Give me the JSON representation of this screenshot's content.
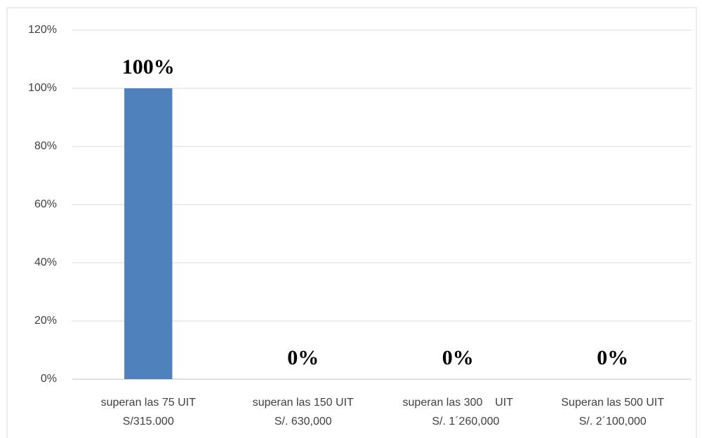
{
  "chart_data": {
    "type": "bar",
    "categories": [
      "superan las 75 UIT\nS/315.000",
      "superan las 150 UIT\nS/. 630,000",
      "superan las 300    UIT\n     S/. 1´260,000",
      "Superan las 500 UIT\nS/. 2´100,000"
    ],
    "values": [
      100,
      0,
      0,
      0
    ],
    "value_labels": [
      "100%",
      "0%",
      "0%",
      "0%"
    ],
    "color": "#4f81bd",
    "ylim": [
      0,
      120
    ],
    "yticks": [
      {
        "value": 0,
        "label": "0%"
      },
      {
        "value": 20,
        "label": "20%"
      },
      {
        "value": 40,
        "label": "40%"
      },
      {
        "value": 60,
        "label": "60%"
      },
      {
        "value": 80,
        "label": "80%"
      },
      {
        "value": 100,
        "label": "100%"
      },
      {
        "value": 120,
        "label": "120%"
      }
    ],
    "grid": true
  }
}
